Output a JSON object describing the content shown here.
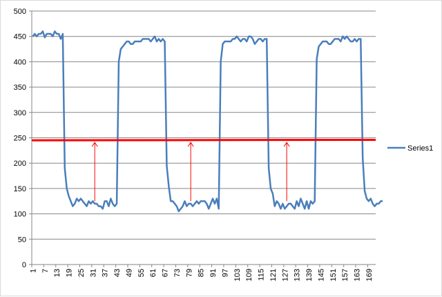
{
  "chart_data": {
    "type": "line",
    "title": "",
    "xlabel": "",
    "ylabel": "",
    "ylim": [
      0,
      500
    ],
    "yticks": [
      0,
      50,
      100,
      150,
      200,
      250,
      300,
      350,
      400,
      450,
      500
    ],
    "xtick_labels": [
      "1",
      "7",
      "13",
      "19",
      "25",
      "31",
      "37",
      "43",
      "49",
      "55",
      "61",
      "67",
      "73",
      "79",
      "85",
      "91",
      "97",
      "103",
      "109",
      "115",
      "121",
      "127",
      "133",
      "139",
      "145",
      "151",
      "157",
      "163",
      "169"
    ],
    "x_count": 172,
    "grid": "horizontal",
    "legend": "right",
    "series": [
      {
        "name": "Series1",
        "color": "#4a7ebb",
        "values": [
          450,
          455,
          450,
          455,
          455,
          460,
          448,
          455,
          455,
          455,
          450,
          460,
          455,
          455,
          445,
          455,
          190,
          150,
          135,
          125,
          115,
          120,
          130,
          125,
          130,
          125,
          120,
          115,
          125,
          120,
          125,
          120,
          120,
          115,
          115,
          110,
          125,
          125,
          115,
          130,
          120,
          115,
          120,
          400,
          425,
          430,
          435,
          440,
          440,
          435,
          435,
          440,
          440,
          440,
          440,
          445,
          445,
          445,
          445,
          440,
          445,
          450,
          440,
          445,
          440,
          445,
          440,
          195,
          155,
          125,
          125,
          120,
          115,
          105,
          110,
          115,
          125,
          115,
          120,
          120,
          115,
          120,
          125,
          120,
          125,
          125,
          125,
          120,
          110,
          120,
          130,
          120,
          130,
          110,
          400,
          435,
          440,
          440,
          440,
          440,
          445,
          445,
          450,
          445,
          440,
          445,
          445,
          440,
          450,
          450,
          445,
          435,
          440,
          445,
          445,
          440,
          445,
          445,
          190,
          150,
          140,
          115,
          125,
          120,
          110,
          120,
          110,
          115,
          120,
          120,
          115,
          110,
          125,
          115,
          130,
          120,
          110,
          125,
          110,
          125,
          120,
          125,
          405,
          430,
          435,
          440,
          440,
          440,
          435,
          435,
          440,
          445,
          445,
          445,
          440,
          450,
          445,
          450,
          445,
          440,
          440,
          445,
          440,
          445,
          445,
          210,
          145,
          130,
          125,
          130,
          120,
          115,
          120,
          120,
          125,
          125
        ]
      },
      {
        "name": "",
        "color": "#ff0000",
        "values": [
          245,
          246
        ]
      }
    ],
    "annotations": [
      {
        "type": "arrow",
        "x": 32,
        "from": 125,
        "to": 245,
        "color": "#ff0000"
      },
      {
        "type": "arrow",
        "x": 80,
        "from": 125,
        "to": 245,
        "color": "#ff0000"
      },
      {
        "type": "arrow",
        "x": 128,
        "from": 125,
        "to": 245,
        "color": "#ff0000"
      }
    ]
  }
}
